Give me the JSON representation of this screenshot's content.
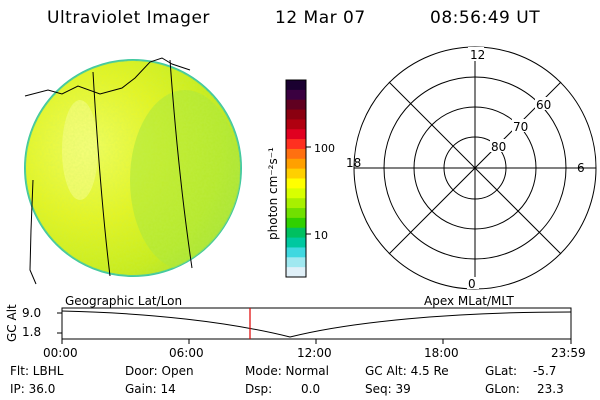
{
  "header": {
    "title": "Ultraviolet Imager",
    "date": "12 Mar 07",
    "time": "08:56:49 UT"
  },
  "colorbar": {
    "unit_label": "photon cm⁻²s⁻¹",
    "ticks": [
      "100",
      "10"
    ],
    "colors_top_to_bottom": [
      "#1a0030",
      "#3a0040",
      "#600020",
      "#8a0010",
      "#b00010",
      "#e00020",
      "#ff3020",
      "#ff7010",
      "#ffa000",
      "#ffd000",
      "#ffff00",
      "#d8ff00",
      "#a8f000",
      "#70e000",
      "#30d000",
      "#00c060",
      "#00c8a0",
      "#40d8e0",
      "#a0e8f0",
      "#e0f0f8"
    ]
  },
  "polar": {
    "mlt_labels": {
      "top": "12",
      "right": "6",
      "bottom": "0",
      "left": "18"
    },
    "lat_labels": [
      "60",
      "70",
      "80"
    ]
  },
  "timeline": {
    "left_label": "Geographic Lat/Lon",
    "right_label": "Apex MLat/MLT",
    "axis_title": "GC Alt",
    "y_ticks": [
      "9.0",
      "1.8"
    ],
    "x_ticks": [
      "00:00",
      "06:00",
      "12:00",
      "18:00",
      "23:59"
    ],
    "marker_color": "#e00000"
  },
  "status": {
    "flt": "Flt: LBHL",
    "ip": "IP: 36.0",
    "door": "Door: Open",
    "gain": "Gain: 14",
    "mode": "Mode: Normal",
    "dsp_label": "Dsp:",
    "dsp_value": "0.0",
    "gcalt": "GC Alt: 4.5 Re",
    "seq": "Seq: 39",
    "glat_label": "GLat:",
    "glat_value": "-5.7",
    "glon_label": "GLon:",
    "glon_value": "23.3"
  }
}
